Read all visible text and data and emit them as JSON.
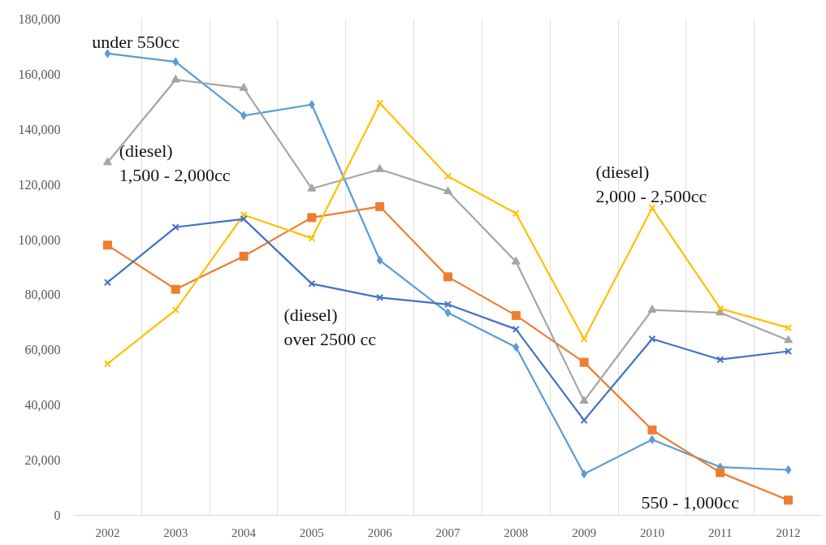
{
  "chart_data": {
    "type": "line",
    "categories": [
      "2002",
      "2003",
      "2004",
      "2005",
      "2006",
      "2007",
      "2008",
      "2009",
      "2010",
      "2011",
      "2012"
    ],
    "ylim": [
      0,
      180000
    ],
    "yticks": [
      {
        "value": 0,
        "label": "0"
      },
      {
        "value": 20000,
        "label": "20,000"
      },
      {
        "value": 40000,
        "label": "40,000"
      },
      {
        "value": 60000,
        "label": "60,000"
      },
      {
        "value": 80000,
        "label": "80,000"
      },
      {
        "value": 100000,
        "label": "100,000"
      },
      {
        "value": 120000,
        "label": "120,000"
      },
      {
        "value": 140000,
        "label": "140,000"
      },
      {
        "value": 160000,
        "label": "160,000"
      },
      {
        "value": 180000,
        "label": "180,000"
      }
    ],
    "grid": "x",
    "series": [
      {
        "name": "under 550cc",
        "color": "#5b9bd5",
        "marker": "diamond",
        "values": [
          167500,
          164500,
          145000,
          149000,
          92500,
          73500,
          61000,
          15000,
          27500,
          17500,
          16500
        ]
      },
      {
        "name": "550 - 1,000cc",
        "color": "#ed7d31",
        "marker": "square",
        "values": [
          98000,
          82000,
          94000,
          108000,
          112000,
          86500,
          72500,
          55500,
          31000,
          15500,
          5500
        ]
      },
      {
        "name": "(diesel)\n1,500 - 2,000cc",
        "color": "#a5a5a5",
        "marker": "triangle",
        "values": [
          128000,
          158000,
          155000,
          118500,
          125500,
          117500,
          92000,
          41500,
          74500,
          73500,
          63500
        ]
      },
      {
        "name": "(diesel)\n2,000 - 2,500cc",
        "color": "#ffc000",
        "marker": "cross",
        "values": [
          55000,
          74500,
          109000,
          100500,
          149500,
          123000,
          109500,
          64000,
          111500,
          75000,
          68000
        ]
      },
      {
        "name": "(diesel)\nover 2500 cc",
        "color": "#4472c4",
        "marker": "cross",
        "values": [
          84500,
          104500,
          107500,
          84000,
          79000,
          76500,
          67500,
          34500,
          64000,
          56500,
          59500
        ]
      }
    ]
  }
}
